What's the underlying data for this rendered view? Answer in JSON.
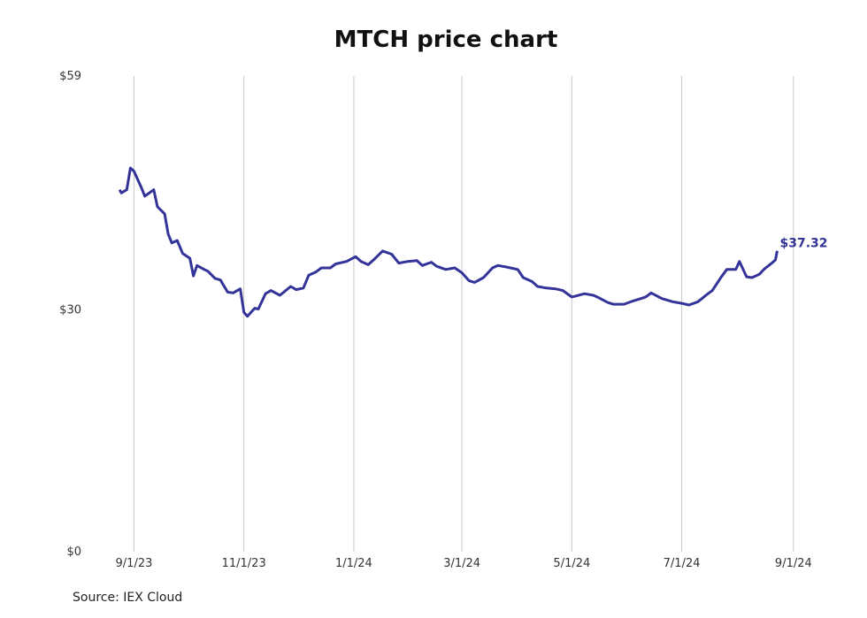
{
  "chart_data": {
    "type": "line",
    "title": "MTCH price chart",
    "source": "Source: IEX Cloud",
    "line_color": "#333399",
    "grid_color": "#c8c8c8",
    "ylim": [
      0,
      59
    ],
    "y_ticks": [
      {
        "value": 0,
        "label": "$0"
      },
      {
        "value": 30,
        "label": "$30"
      },
      {
        "value": 59,
        "label": "$59"
      }
    ],
    "xlim": [
      "2023-08-20",
      "2024-09-05"
    ],
    "x_ticks": [
      {
        "date": "2023-09-01",
        "label": "9/1/23"
      },
      {
        "date": "2023-11-01",
        "label": "11/1/23"
      },
      {
        "date": "2024-01-01",
        "label": "1/1/24"
      },
      {
        "date": "2024-03-01",
        "label": "3/1/24"
      },
      {
        "date": "2024-05-01",
        "label": "5/1/24"
      },
      {
        "date": "2024-07-01",
        "label": "7/1/24"
      },
      {
        "date": "2024-09-01",
        "label": "9/1/24"
      }
    ],
    "last_value_label": "$37.32",
    "series": [
      {
        "x": [
          "2023-08-24",
          "2023-08-25",
          "2023-08-28",
          "2023-08-30",
          "2023-09-01",
          "2023-09-05",
          "2023-09-07",
          "2023-09-12",
          "2023-09-14",
          "2023-09-18",
          "2023-09-20",
          "2023-09-22",
          "2023-09-25",
          "2023-09-28",
          "2023-10-02",
          "2023-10-04",
          "2023-10-06",
          "2023-10-10",
          "2023-10-12",
          "2023-10-16",
          "2023-10-19",
          "2023-10-23",
          "2023-10-26",
          "2023-10-30",
          "2023-11-01",
          "2023-11-03",
          "2023-11-07",
          "2023-11-09",
          "2023-11-13",
          "2023-11-16",
          "2023-11-21",
          "2023-11-27",
          "2023-11-30",
          "2023-12-04",
          "2023-12-07",
          "2023-12-11",
          "2023-12-14",
          "2023-12-19",
          "2023-12-22",
          "2023-12-28",
          "2024-01-02",
          "2024-01-05",
          "2024-01-09",
          "2024-01-12",
          "2024-01-17",
          "2024-01-22",
          "2024-01-26",
          "2024-01-31",
          "2024-02-05",
          "2024-02-08",
          "2024-02-13",
          "2024-02-16",
          "2024-02-21",
          "2024-02-26",
          "2024-03-01",
          "2024-03-05",
          "2024-03-08",
          "2024-03-13",
          "2024-03-18",
          "2024-03-21",
          "2024-03-26",
          "2024-04-01",
          "2024-04-04",
          "2024-04-09",
          "2024-04-12",
          "2024-04-17",
          "2024-04-22",
          "2024-04-26",
          "2024-05-01",
          "2024-05-03",
          "2024-05-08",
          "2024-05-13",
          "2024-05-16",
          "2024-05-21",
          "2024-05-24",
          "2024-05-30",
          "2024-06-04",
          "2024-06-07",
          "2024-06-11",
          "2024-06-14",
          "2024-06-20",
          "2024-06-26",
          "2024-07-01",
          "2024-07-05",
          "2024-07-10",
          "2024-07-15",
          "2024-07-18",
          "2024-07-23",
          "2024-07-26",
          "2024-07-31",
          "2024-08-02",
          "2024-08-06",
          "2024-08-09",
          "2024-08-13",
          "2024-08-16",
          "2024-08-20",
          "2024-08-22",
          "2024-08-23"
        ],
        "values": [
          44.9,
          44.5,
          44.9,
          47.6,
          47.2,
          45.2,
          44.1,
          44.9,
          42.8,
          41.9,
          39.4,
          38.3,
          38.6,
          37.0,
          36.4,
          34.2,
          35.5,
          35.0,
          34.8,
          33.9,
          33.7,
          32.2,
          32.1,
          32.6,
          29.7,
          29.2,
          30.2,
          30.1,
          32.0,
          32.4,
          31.8,
          32.9,
          32.5,
          32.7,
          34.3,
          34.7,
          35.2,
          35.2,
          35.7,
          36.0,
          36.6,
          36.0,
          35.6,
          36.2,
          37.3,
          36.9,
          35.8,
          36.0,
          36.1,
          35.5,
          35.9,
          35.4,
          35.0,
          35.2,
          34.6,
          33.6,
          33.4,
          34.0,
          35.2,
          35.5,
          35.3,
          35.0,
          34.0,
          33.5,
          32.9,
          32.7,
          32.6,
          32.4,
          31.6,
          31.7,
          32.0,
          31.8,
          31.5,
          30.9,
          30.7,
          30.7,
          31.1,
          31.3,
          31.6,
          32.1,
          31.4,
          31.0,
          30.8,
          30.6,
          31.0,
          31.9,
          32.4,
          34.1,
          35.0,
          35.0,
          36.0,
          34.1,
          34.0,
          34.4,
          35.1,
          35.8,
          36.2,
          37.32
        ]
      }
    ]
  }
}
